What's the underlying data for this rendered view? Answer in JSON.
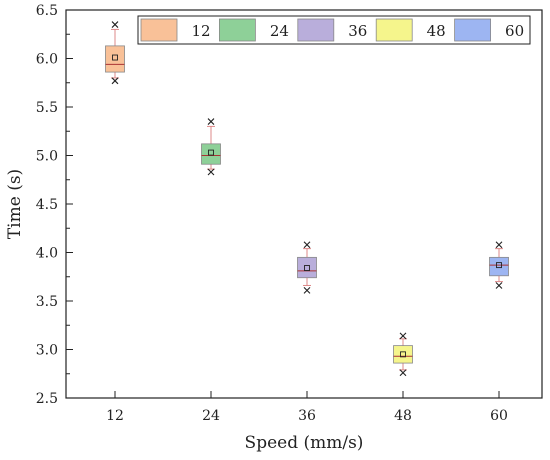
{
  "chart_data": {
    "type": "box",
    "title": "",
    "xlabel": "Speed (mm/s)",
    "ylabel": "Time (s)",
    "categories": [
      "12",
      "24",
      "36",
      "48",
      "60"
    ],
    "ylim": [
      2.5,
      6.5
    ],
    "yticks": [
      2.5,
      3.0,
      3.5,
      4.0,
      4.5,
      5.0,
      5.5,
      6.0,
      6.5
    ],
    "ytick_labels": [
      "2.5",
      "3.0",
      "3.5",
      "4.0",
      "4.5",
      "5.0",
      "5.5",
      "6.0",
      "6.5"
    ],
    "grid": false,
    "legend_position": "top",
    "series": [
      {
        "name": "12",
        "color": "#F9C198",
        "min": 5.8,
        "q1": 5.86,
        "median": 5.94,
        "q3": 6.13,
        "max": 6.3,
        "mean": 6.01,
        "outliers": [
          5.77,
          6.35
        ]
      },
      {
        "name": "24",
        "color": "#8ED098",
        "min": 4.86,
        "q1": 4.91,
        "median": 5.0,
        "q3": 5.12,
        "max": 5.3,
        "mean": 5.03,
        "outliers": [
          4.83,
          5.35
        ]
      },
      {
        "name": "36",
        "color": "#B9AEDB",
        "min": 3.66,
        "q1": 3.74,
        "median": 3.81,
        "q3": 3.95,
        "max": 4.04,
        "mean": 3.84,
        "outliers": [
          3.61,
          4.08
        ]
      },
      {
        "name": "48",
        "color": "#F5F58C",
        "min": 2.79,
        "q1": 2.86,
        "median": 2.93,
        "q3": 3.04,
        "max": 3.11,
        "mean": 2.95,
        "outliers": [
          2.76,
          3.14
        ]
      },
      {
        "name": "60",
        "color": "#9DB5F2",
        "min": 3.7,
        "q1": 3.76,
        "median": 3.87,
        "q3": 3.95,
        "max": 4.04,
        "mean": 3.87,
        "outliers": [
          3.66,
          4.08
        ]
      }
    ]
  }
}
